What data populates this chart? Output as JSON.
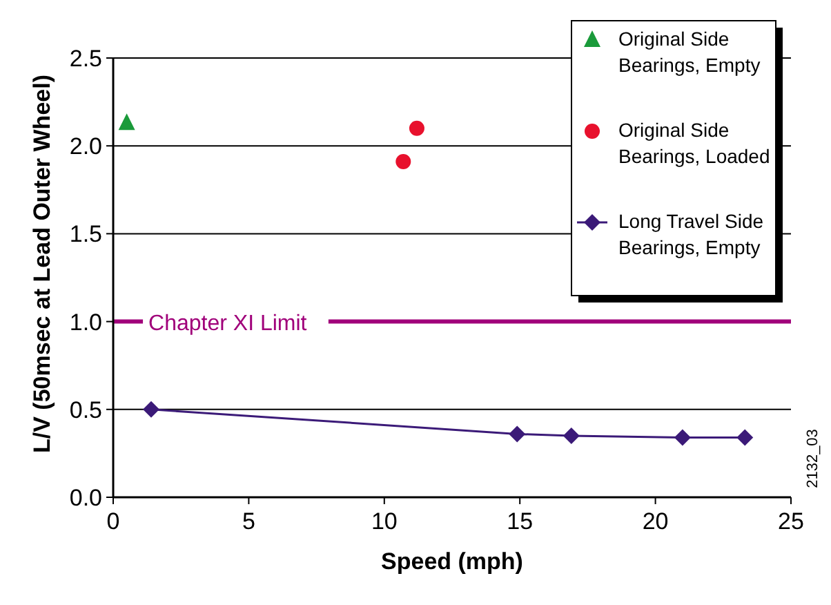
{
  "chart_data": {
    "type": "scatter",
    "xlabel": "Speed (mph)",
    "ylabel": "L/V (50msec at Lead Outer Wheel)",
    "xlim": [
      0,
      25
    ],
    "ylim": [
      0,
      2.5
    ],
    "xticks": [
      0,
      5,
      10,
      15,
      20,
      25
    ],
    "yticks": [
      {
        "value": 0,
        "label": "0.0"
      },
      {
        "value": 0.5,
        "label": "0.5"
      },
      {
        "value": 1,
        "label": "1.0"
      },
      {
        "value": 1.5,
        "label": "1.5"
      },
      {
        "value": 2,
        "label": "2.0"
      },
      {
        "value": 2.5,
        "label": "2.5"
      }
    ],
    "grid": "y",
    "legend": "top right",
    "series": [
      {
        "name": "Original Side Bearings, Empty",
        "marker": "triangle",
        "color": "#1a9a3a",
        "x": [
          0.5
        ],
        "values": [
          2.13
        ]
      },
      {
        "name": "Original Side Bearings, Loaded",
        "marker": "circle",
        "color": "#e8112d",
        "x": [
          10.7,
          11.2
        ],
        "values": [
          1.91,
          2.1
        ]
      },
      {
        "name": "Long Travel Side Bearings, Empty",
        "type": "line",
        "marker": "diamond",
        "color": "#3b1a78",
        "x": [
          1.4,
          14.9,
          16.9,
          21,
          23.3
        ],
        "values": [
          0.5,
          0.36,
          0.35,
          0.34,
          0.34
        ]
      }
    ],
    "ref_lines": [
      {
        "axis": "y",
        "value": 1,
        "label": "Chapter XI Limit",
        "color": "#a0007a"
      }
    ],
    "annotations": [
      "2132_03"
    ]
  }
}
